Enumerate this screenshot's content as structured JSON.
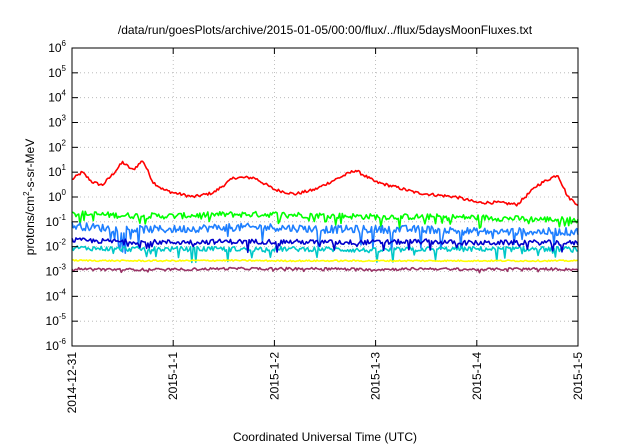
{
  "chart_data": {
    "type": "line",
    "title": "/data/run/goesPlots/archive/2015-01-05/00:00/flux/../flux/5daysMoonFluxes.txt",
    "xlabel": "Coordinated Universal Time (UTC)",
    "ylabel": "protons/cm²-s-sr-MeV",
    "yscale": "log",
    "ylim": [
      1e-06,
      1000000.0
    ],
    "xlim": [
      "2014-12-31",
      "2015-01-05"
    ],
    "x_ticks": [
      "2014-12-31",
      "2015-1-1",
      "2015-1-2",
      "2015-1-3",
      "2015-1-4",
      "2015-1-5"
    ],
    "y_ticks": [
      {
        "value": 1e-06,
        "base": "10",
        "exp": "-6"
      },
      {
        "value": 1e-05,
        "base": "10",
        "exp": "-5"
      },
      {
        "value": 0.0001,
        "base": "10",
        "exp": "-4"
      },
      {
        "value": 0.001,
        "base": "10",
        "exp": "-3"
      },
      {
        "value": 0.01,
        "base": "10",
        "exp": "-2"
      },
      {
        "value": 0.1,
        "base": "10",
        "exp": "-1"
      },
      {
        "value": 1,
        "base": "10",
        "exp": "0"
      },
      {
        "value": 10.0,
        "base": "10",
        "exp": "1"
      },
      {
        "value": 100.0,
        "base": "10",
        "exp": "2"
      },
      {
        "value": 1000.0,
        "base": "10",
        "exp": "3"
      },
      {
        "value": 10000.0,
        "base": "10",
        "exp": "4"
      },
      {
        "value": 100000.0,
        "base": "10",
        "exp": "5"
      },
      {
        "value": 1000000.0,
        "base": "10",
        "exp": "6"
      }
    ],
    "grid": true,
    "legend": "none",
    "series": [
      {
        "color": "#ff0000",
        "x": [
          0,
          0.1,
          0.2,
          0.3,
          0.4,
          0.5,
          0.6,
          0.7,
          0.8,
          0.9,
          1.0,
          1.2,
          1.4,
          1.6,
          1.8,
          2.0,
          2.2,
          2.4,
          2.6,
          2.8,
          3.0,
          3.2,
          3.4,
          3.6,
          3.8,
          4.0,
          4.2,
          4.4,
          4.6,
          4.8,
          4.9,
          5.0
        ],
        "values": [
          5,
          10,
          4,
          3,
          8,
          25,
          12,
          30,
          4,
          2,
          1.5,
          1.0,
          1.5,
          6,
          6,
          2,
          1.3,
          2,
          5,
          12,
          4,
          2.5,
          1.5,
          1.2,
          1.0,
          0.6,
          0.6,
          0.5,
          3,
          8,
          1.0,
          0.5
        ]
      },
      {
        "color": "#00ff00",
        "x": [
          0,
          0.5,
          1.0,
          1.5,
          2.0,
          2.5,
          3.0,
          3.5,
          4.0,
          4.5,
          5.0
        ],
        "values": [
          0.22,
          0.18,
          0.17,
          0.2,
          0.2,
          0.18,
          0.16,
          0.16,
          0.15,
          0.13,
          0.12
        ]
      },
      {
        "color": "#1e7fff",
        "x": [
          0,
          0.5,
          1.0,
          1.5,
          2.0,
          2.5,
          3.0,
          3.5,
          4.0,
          4.5,
          5.0
        ],
        "values": [
          0.07,
          0.05,
          0.05,
          0.06,
          0.06,
          0.05,
          0.05,
          0.05,
          0.04,
          0.04,
          0.04
        ]
      },
      {
        "color": "#00c8c8",
        "x": [
          0,
          0.5,
          1.0,
          1.5,
          2.0,
          2.5,
          3.0,
          3.5,
          4.0,
          4.5,
          5.0
        ],
        "values": [
          0.009,
          0.008,
          0.008,
          0.008,
          0.008,
          0.008,
          0.007,
          0.008,
          0.008,
          0.008,
          0.008
        ]
      },
      {
        "color": "#0000cc",
        "x": [
          0,
          0.5,
          1.0,
          1.5,
          2.0,
          2.5,
          3.0,
          3.5,
          4.0,
          4.5,
          5.0
        ],
        "values": [
          0.018,
          0.016,
          0.015,
          0.016,
          0.016,
          0.015,
          0.015,
          0.016,
          0.014,
          0.015,
          0.014
        ]
      },
      {
        "color": "#ffff00",
        "x": [
          0,
          0.5,
          1.0,
          1.5,
          2.0,
          2.5,
          3.0,
          3.5,
          4.0,
          4.5,
          5.0
        ],
        "values": [
          0.0028,
          0.0027,
          0.0027,
          0.0028,
          0.0027,
          0.0027,
          0.0027,
          0.0027,
          0.0027,
          0.0027,
          0.0027
        ]
      },
      {
        "color": "#993366",
        "x": [
          0,
          0.5,
          1.0,
          1.5,
          2.0,
          2.5,
          3.0,
          3.5,
          4.0,
          4.5,
          5.0
        ],
        "values": [
          0.0013,
          0.0012,
          0.0012,
          0.0013,
          0.0013,
          0.0013,
          0.0012,
          0.0013,
          0.0012,
          0.0013,
          0.0012
        ]
      }
    ]
  }
}
